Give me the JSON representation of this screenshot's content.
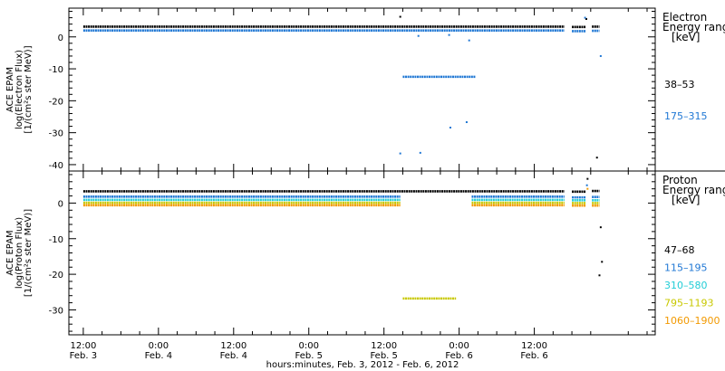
{
  "chart_data": [
    {
      "type": "scatter",
      "panel": "electron",
      "ylabel": [
        "ACE EPAM",
        "log(Electron Flux)",
        "[1/(cm²s ster MeV)]"
      ],
      "ylim": [
        -42,
        9
      ],
      "yticks": [
        0,
        -10,
        -20,
        -30,
        -40
      ],
      "legend_title": [
        "Electron",
        "Energy range",
        "[keV]"
      ],
      "series": [
        {
          "name": "38–53",
          "color": "#000000",
          "segments": [
            {
              "x": [
                0,
                76.8
              ],
              "y": 3.2
            },
            {
              "x": [
                78.0,
                80.2
              ],
              "y": 3.1
            },
            {
              "x": [
                81.2,
                82.4
              ],
              "y": 3.2
            }
          ],
          "points": [
            {
              "x": 50.6,
              "y": 6.3
            },
            {
              "x": 80.3,
              "y": 5.6
            },
            {
              "x": 82.0,
              "y": -37.8
            }
          ]
        },
        {
          "name": "175–315",
          "color": "#1f77d4",
          "segments": [
            {
              "x": [
                0,
                76.8
              ],
              "y": 2.0
            },
            {
              "x": [
                78.0,
                80.2
              ],
              "y": 1.8
            },
            {
              "x": [
                81.2,
                82.4
              ],
              "y": 1.9
            },
            {
              "x": [
                51.0,
                62.6
              ],
              "y": -12.5
            }
          ],
          "points": [
            {
              "x": 53.5,
              "y": 0.3
            },
            {
              "x": 58.4,
              "y": 0.6
            },
            {
              "x": 61.6,
              "y": -1.1
            },
            {
              "x": 50.6,
              "y": -36.5
            },
            {
              "x": 53.8,
              "y": -36.3
            },
            {
              "x": 58.6,
              "y": -28.4
            },
            {
              "x": 61.2,
              "y": -26.7
            },
            {
              "x": 80.1,
              "y": 6.0
            },
            {
              "x": 82.6,
              "y": -6.0
            }
          ]
        }
      ]
    },
    {
      "type": "scatter",
      "panel": "proton",
      "ylabel": [
        "ACE EPAM",
        "log(Proton Flux)",
        "[1/(cm²s ster MeV)]"
      ],
      "ylim": [
        -37,
        9
      ],
      "yticks": [
        0,
        -10,
        -20,
        -30
      ],
      "legend_title": [
        "Proton",
        "Energy range",
        "[keV]"
      ],
      "series": [
        {
          "name": "47–68",
          "color": "#000000",
          "segments": [
            {
              "x": [
                0,
                76.8
              ],
              "y": 3.3
            },
            {
              "x": [
                78.0,
                80.2
              ],
              "y": 3.2
            },
            {
              "x": [
                81.2,
                82.4
              ],
              "y": 3.4
            }
          ],
          "points": [
            {
              "x": 80.5,
              "y": 6.8
            },
            {
              "x": 82.6,
              "y": -6.8
            },
            {
              "x": 82.8,
              "y": -16.5
            },
            {
              "x": 82.4,
              "y": -20.3
            }
          ]
        },
        {
          "name": "115–195",
          "color": "#1f77d4",
          "segments": [
            {
              "x": [
                0,
                50.6
              ],
              "y": 1.8
            },
            {
              "x": [
                62.0,
                76.8
              ],
              "y": 1.8
            },
            {
              "x": [
                78.0,
                80.2
              ],
              "y": 1.6
            },
            {
              "x": [
                81.2,
                82.4
              ],
              "y": 1.7
            }
          ],
          "points": [
            {
              "x": 80.4,
              "y": 5.0
            }
          ]
        },
        {
          "name": "310–580",
          "color": "#22cdd6",
          "segments": [
            {
              "x": [
                0,
                50.6
              ],
              "y": 0.9
            },
            {
              "x": [
                62.0,
                76.8
              ],
              "y": 0.9
            },
            {
              "x": [
                78.0,
                80.2
              ],
              "y": 0.8
            },
            {
              "x": [
                81.2,
                82.4
              ],
              "y": 0.8
            }
          ],
          "points": []
        },
        {
          "name": "795–1193",
          "color": "#c8c800",
          "segments": [
            {
              "x": [
                0,
                50.6
              ],
              "y": 0.1
            },
            {
              "x": [
                62.0,
                76.8
              ],
              "y": 0.1
            },
            {
              "x": [
                78.0,
                80.2
              ],
              "y": 0.0
            },
            {
              "x": [
                81.2,
                82.4
              ],
              "y": 0.0
            },
            {
              "x": [
                51.0,
                59.5
              ],
              "y": -26.8
            }
          ],
          "points": []
        },
        {
          "name": "1060–1900",
          "color": "#f29900",
          "segments": [
            {
              "x": [
                0,
                50.6
              ],
              "y": -0.6
            },
            {
              "x": [
                62.0,
                76.8
              ],
              "y": -0.6
            },
            {
              "x": [
                78.0,
                80.2
              ],
              "y": -0.7
            },
            {
              "x": [
                81.2,
                82.4
              ],
              "y": -0.7
            }
          ],
          "points": [
            {
              "x": 80.5,
              "y": 4.0
            }
          ]
        }
      ]
    }
  ],
  "x_axis": {
    "xlim": [
      -2.3,
      91.3
    ],
    "major_ticks": [
      {
        "x": 0,
        "time": "12:00",
        "date": "Feb. 3"
      },
      {
        "x": 12,
        "time": "0:00",
        "date": "Feb. 4"
      },
      {
        "x": 24,
        "time": "12:00",
        "date": "Feb. 4"
      },
      {
        "x": 36,
        "time": "0:00",
        "date": "Feb. 5"
      },
      {
        "x": 48,
        "time": "12:00",
        "date": "Feb. 5"
      },
      {
        "x": 60,
        "time": "0:00",
        "date": "Feb. 6"
      },
      {
        "x": 72,
        "time": "12:00",
        "date": "Feb. 6"
      }
    ],
    "xlabel": "hours:minutes, Feb.  3, 2012 - Feb.  6, 2012"
  },
  "legend_colors": {
    "electron": [
      "#000000",
      "#1f77d4"
    ],
    "proton": [
      "#000000",
      "#1f77d4",
      "#22cdd6",
      "#c8c800",
      "#f29900"
    ]
  }
}
